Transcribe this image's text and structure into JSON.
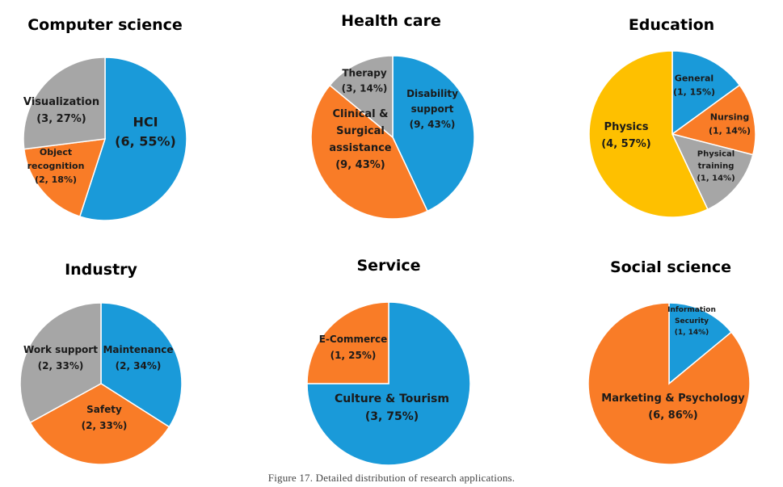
{
  "colors": {
    "blue": "#1a9ad9",
    "orange": "#f97c27",
    "gray": "#a6a6a6",
    "yellow": "#fec000",
    "stroke": "#ffffff"
  },
  "caption": "Figure 17. Detailed distribution of research applications.",
  "chart_data": [
    {
      "type": "pie",
      "title": "Computer science",
      "slices": [
        {
          "lines": [
            "HCI",
            "(6, 55%)"
          ],
          "value": 55,
          "color": "blue"
        },
        {
          "lines": [
            "Object",
            "recognition",
            "(2, 18%)"
          ],
          "value": 18,
          "color": "orange"
        },
        {
          "lines": [
            "Visualization",
            "(3, 27%)"
          ],
          "value": 27,
          "color": "gray"
        }
      ]
    },
    {
      "type": "pie",
      "title": "Health care",
      "slices": [
        {
          "lines": [
            "Disability",
            "support",
            "(9, 43%)"
          ],
          "value": 43,
          "color": "blue"
        },
        {
          "lines": [
            "Clinical &",
            "Surgical",
            "assistance",
            "(9, 43%)"
          ],
          "value": 43,
          "color": "orange"
        },
        {
          "lines": [
            "Therapy",
            "(3, 14%)"
          ],
          "value": 14,
          "color": "gray"
        }
      ]
    },
    {
      "type": "pie",
      "title": "Education",
      "slices": [
        {
          "lines": [
            "General",
            "(1, 15%)"
          ],
          "value": 15,
          "color": "blue"
        },
        {
          "lines": [
            "Nursing",
            "(1, 14%)"
          ],
          "value": 14,
          "color": "orange"
        },
        {
          "lines": [
            "Physical",
            "training",
            "(1, 14%)"
          ],
          "value": 14,
          "color": "gray"
        },
        {
          "lines": [
            "Physics",
            "(4, 57%)"
          ],
          "value": 57,
          "color": "yellow"
        }
      ]
    },
    {
      "type": "pie",
      "title": "Industry",
      "slices": [
        {
          "lines": [
            "Maintenance",
            "(2, 34%)"
          ],
          "value": 34,
          "color": "blue"
        },
        {
          "lines": [
            "Safety",
            "(2, 33%)"
          ],
          "value": 33,
          "color": "orange"
        },
        {
          "lines": [
            "Work support",
            "(2, 33%)"
          ],
          "value": 33,
          "color": "gray"
        }
      ]
    },
    {
      "type": "pie",
      "title": "Service",
      "slices": [
        {
          "lines": [
            "Culture & Tourism",
            "(3, 75%)"
          ],
          "value": 75,
          "color": "blue"
        },
        {
          "lines": [
            "E-Commerce",
            "(1, 25%)"
          ],
          "value": 25,
          "color": "orange"
        }
      ]
    },
    {
      "type": "pie",
      "title": "Social science",
      "slices": [
        {
          "lines": [
            "Information",
            "Security",
            "(1, 14%)"
          ],
          "value": 14,
          "color": "blue"
        },
        {
          "lines": [
            "Marketing & Psychology",
            "(6, 86%)"
          ],
          "value": 86,
          "color": "orange"
        }
      ]
    }
  ]
}
